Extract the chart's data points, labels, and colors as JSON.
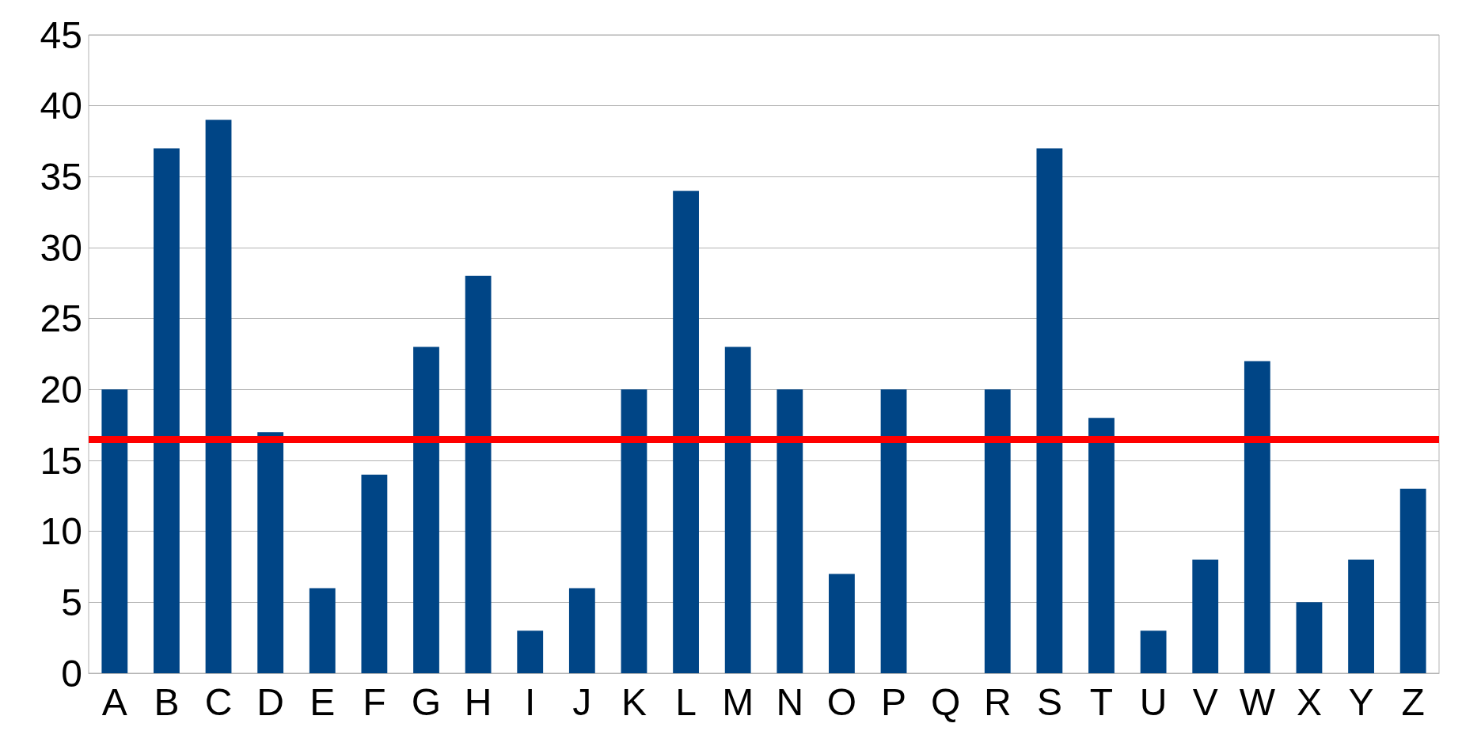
{
  "chart_data": {
    "type": "bar",
    "categories": [
      "A",
      "B",
      "C",
      "D",
      "E",
      "F",
      "G",
      "H",
      "I",
      "J",
      "K",
      "L",
      "M",
      "N",
      "O",
      "P",
      "Q",
      "R",
      "S",
      "T",
      "U",
      "V",
      "W",
      "X",
      "Y",
      "Z"
    ],
    "values": [
      20,
      37,
      39,
      17,
      6,
      14,
      23,
      28,
      3,
      6,
      20,
      34,
      23,
      20,
      7,
      20,
      0,
      20,
      37,
      18,
      3,
      8,
      22,
      5,
      8,
      13
    ],
    "color": "#004586",
    "ylim": [
      0,
      45
    ],
    "yticks": [
      0,
      5,
      10,
      15,
      20,
      25,
      30,
      35,
      40,
      45
    ],
    "grid": "y",
    "ref_lines": [
      {
        "axis": "y",
        "value": 16.5,
        "color": "#ff0000",
        "line_style": "solid"
      }
    ]
  }
}
